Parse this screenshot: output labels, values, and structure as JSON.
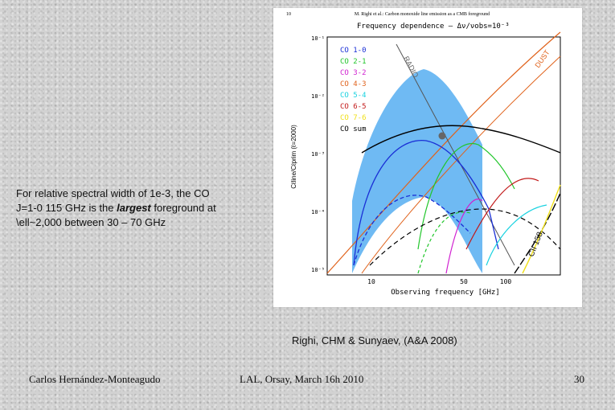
{
  "text_block": {
    "line1": "For relative spectral width of 1e-3, the CO",
    "line2_pre": "J=1-0 115 GHz is the ",
    "line2_em": "largest",
    "line2_post": " foreground at",
    "line3": "\\ell~2,000 between 30 – 70 GHz"
  },
  "caption": "Righi, CHM & Sunyaev, (A&A 2008)",
  "footer": {
    "author": "Carlos Hernández-Monteagudo",
    "event": "LAL, Orsay, March 16h 2010",
    "page": "30"
  },
  "figure": {
    "page_no": "10",
    "running_header": "M. Righi et al.: Carbon monoxide line emission as a CMB foreground",
    "title": "Frequency dependence – Δν/νobs=10⁻³",
    "y_label": "Cℓline/Cℓprim (ℓ=2000)",
    "x_label": "Observing frequency [GHz]",
    "x_ticks": [
      "10",
      "50",
      "100"
    ],
    "y_ticks": [
      "10⁻¹",
      "10⁻²",
      "10⁻³",
      "10⁻⁴",
      "10⁻⁵"
    ],
    "curve_labels": {
      "radio": "RADIO",
      "dust": "DUST",
      "cii": "CII 158"
    },
    "legend": [
      {
        "label": "CO 1-0",
        "color": "#1a2fd6"
      },
      {
        "label": "CO 2-1",
        "color": "#21c62b"
      },
      {
        "label": "CO 3-2",
        "color": "#d01fd0"
      },
      {
        "label": "CO 4-3",
        "color": "#e0621b"
      },
      {
        "label": "CO 5-4",
        "color": "#19d2e0"
      },
      {
        "label": "CO 6-5",
        "color": "#c21a1a"
      },
      {
        "label": "CO 7-6",
        "color": "#f0e01a"
      },
      {
        "label": "CO sum",
        "color": "#000000"
      }
    ]
  }
}
